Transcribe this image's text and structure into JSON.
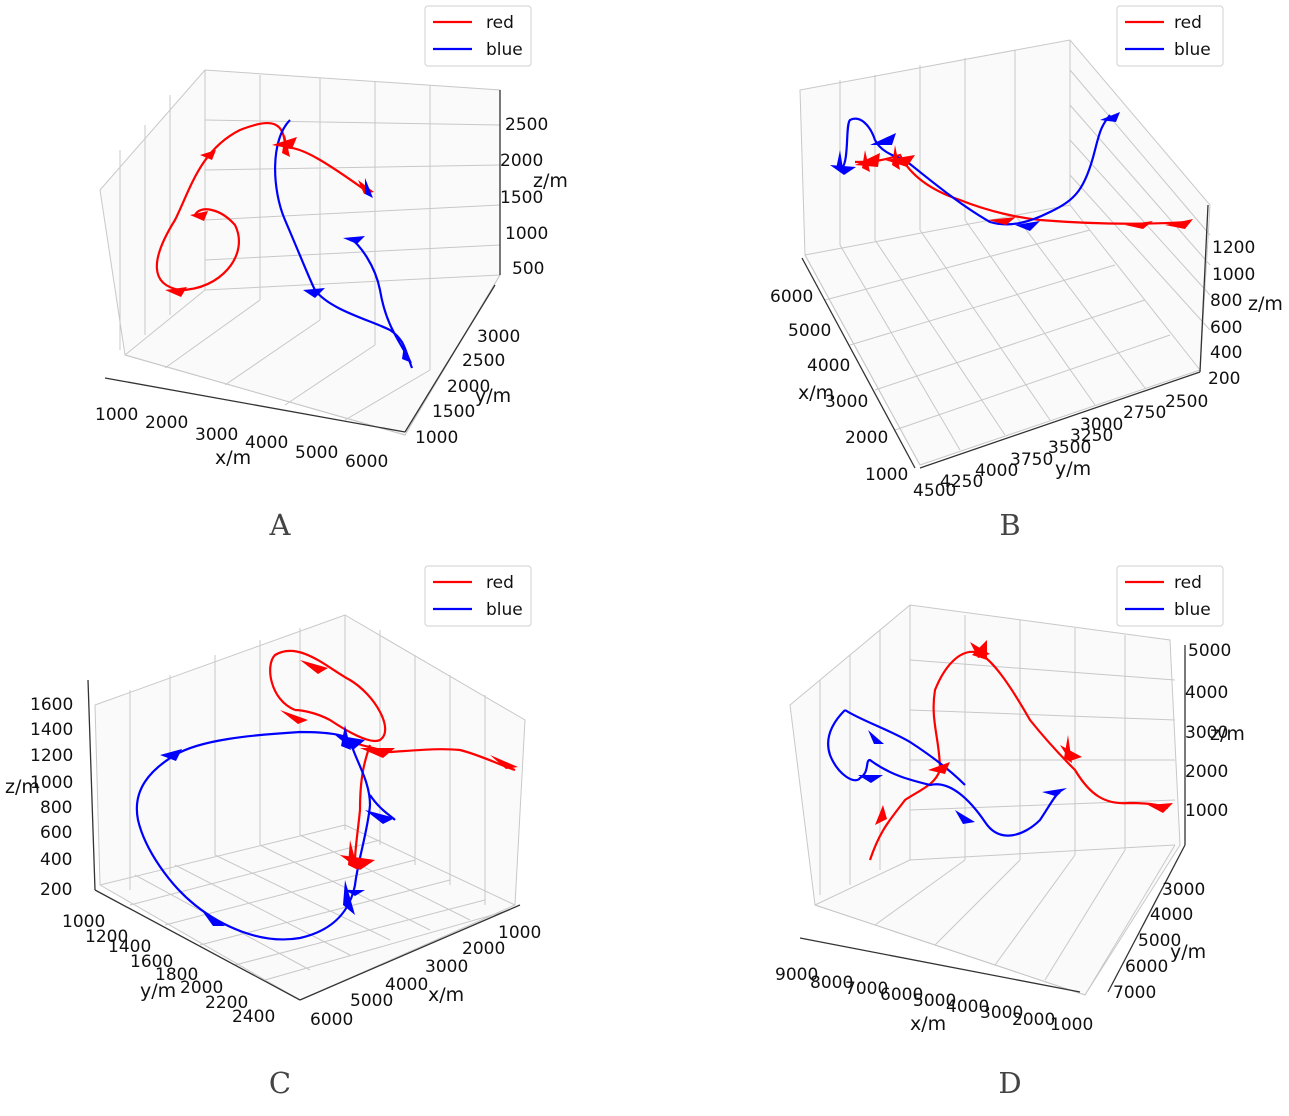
{
  "chart_data": [
    {
      "type": "line",
      "panel_label": "A",
      "legend": [
        "red",
        "blue"
      ],
      "legend_location": "top-right",
      "xlabel": "x/m",
      "ylabel": "y/m",
      "zlabel": "z/m",
      "x_ticks": [
        "1000",
        "2000",
        "3000",
        "4000",
        "5000",
        "6000"
      ],
      "y_ticks": [
        "1000",
        "1500",
        "2000",
        "2500",
        "3000"
      ],
      "z_ticks": [
        "500",
        "1000",
        "1500",
        "2000",
        "2500"
      ],
      "grid": true,
      "series": [
        {
          "name": "red",
          "color": "#ff0000"
        },
        {
          "name": "blue",
          "color": "#0000ff"
        }
      ]
    },
    {
      "type": "line",
      "panel_label": "B",
      "legend": [
        "red",
        "blue"
      ],
      "legend_location": "top-right",
      "xlabel": "x/m",
      "ylabel": "y/m",
      "zlabel": "z/m",
      "x_ticks": [
        "1000",
        "2000",
        "3000",
        "4000",
        "5000",
        "6000"
      ],
      "y_ticks": [
        "4500",
        "4250",
        "4000",
        "3750",
        "3500",
        "3250",
        "3000",
        "2750",
        "2500"
      ],
      "z_ticks": [
        "200",
        "400",
        "600",
        "800",
        "1000",
        "1200"
      ],
      "grid": true,
      "series": [
        {
          "name": "red",
          "color": "#ff0000"
        },
        {
          "name": "blue",
          "color": "#0000ff"
        }
      ]
    },
    {
      "type": "line",
      "panel_label": "C",
      "legend": [
        "red",
        "blue"
      ],
      "legend_location": "top-right",
      "xlabel": "x/m",
      "ylabel": "y/m",
      "zlabel": "z/m",
      "x_ticks": [
        "1000",
        "2000",
        "3000",
        "4000",
        "5000",
        "6000"
      ],
      "y_ticks": [
        "1000",
        "1200",
        "1400",
        "1600",
        "1800",
        "2000",
        "2200",
        "2400"
      ],
      "z_ticks": [
        "200",
        "400",
        "600",
        "800",
        "1000",
        "1200",
        "1400",
        "1600"
      ],
      "grid": true,
      "series": [
        {
          "name": "red",
          "color": "#ff0000"
        },
        {
          "name": "blue",
          "color": "#0000ff"
        }
      ]
    },
    {
      "type": "line",
      "panel_label": "D",
      "legend": [
        "red",
        "blue"
      ],
      "legend_location": "top-right",
      "xlabel": "x/m",
      "ylabel": "y/m",
      "zlabel": "z/m",
      "x_ticks": [
        "9000",
        "8000",
        "7000",
        "6000",
        "5000",
        "4000",
        "3000",
        "2000",
        "1000"
      ],
      "y_ticks": [
        "3000",
        "4000",
        "5000",
        "6000",
        "7000"
      ],
      "z_ticks": [
        "1000",
        "2000",
        "3000",
        "4000",
        "5000"
      ],
      "grid": true,
      "series": [
        {
          "name": "red",
          "color": "#ff0000"
        },
        {
          "name": "blue",
          "color": "#0000ff"
        }
      ]
    }
  ]
}
